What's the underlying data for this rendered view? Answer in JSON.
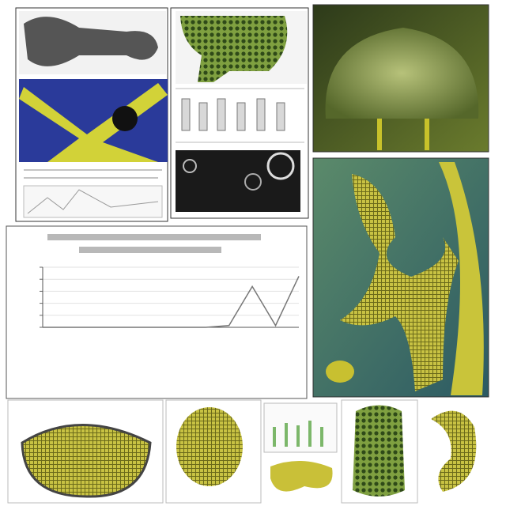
{
  "chart_data": {
    "type": "line",
    "categories": [
      null,
      null,
      null,
      null,
      null,
      null,
      null,
      null,
      null,
      null,
      null,
      null
    ],
    "series": [
      {
        "color": "#777777",
        "values": [
          0,
          0,
          0,
          0,
          0,
          0,
          0,
          0,
          3,
          68,
          3,
          85
        ]
      }
    ],
    "ylim": [
      0,
      100
    ],
    "yticks": [
      0,
      20,
      40,
      60,
      80,
      100
    ],
    "grid": true
  }
}
